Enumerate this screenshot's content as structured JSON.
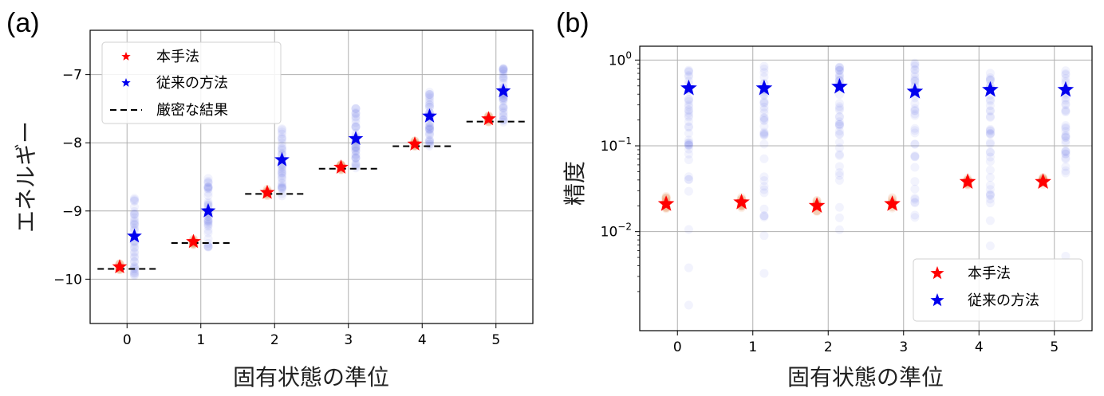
{
  "chart_data": [
    {
      "panel_label": "(a)",
      "type": "scatter",
      "xlabel": "固有状態の準位",
      "ylabel": "エネルギー",
      "xlim": [
        -0.5,
        5.5
      ],
      "ylim": [
        -10.65,
        -6.35
      ],
      "x_ticks": [
        "0",
        "1",
        "2",
        "3",
        "4",
        "5"
      ],
      "y_ticks": [
        {
          "v": -10,
          "label": "−10"
        },
        {
          "v": -9,
          "label": "−9"
        },
        {
          "v": -8,
          "label": "−8"
        },
        {
          "v": -7,
          "label": "−7"
        }
      ],
      "grid": true,
      "legend": {
        "placement": "top-left",
        "entries": [
          {
            "label": "本手法",
            "color": "#ff0000",
            "marker": "star"
          },
          {
            "label": "従来の方法",
            "color": "#0000ee",
            "marker": "star"
          },
          {
            "label": "厳密な結果",
            "color": "#000000",
            "marker": "dashed-line"
          }
        ]
      },
      "series": [
        {
          "name": "本手法",
          "color": "#ff0000",
          "x": [
            -0.1,
            0.9,
            1.9,
            2.9,
            3.9,
            4.9
          ],
          "y": [
            -9.82,
            -9.45,
            -8.73,
            -8.36,
            -8.02,
            -7.65
          ]
        },
        {
          "name": "従来の方法",
          "color": "#0000ee",
          "x": [
            0.1,
            1.1,
            2.1,
            3.1,
            4.1,
            5.1
          ],
          "y": [
            -9.37,
            -9.0,
            -8.25,
            -7.94,
            -7.61,
            -7.24
          ]
        },
        {
          "name": "厳密な結果",
          "color": "#000000",
          "x": [
            0,
            1,
            2,
            3,
            4,
            5
          ],
          "y": [
            -9.85,
            -9.47,
            -8.75,
            -8.38,
            -8.05,
            -7.69
          ]
        }
      ],
      "spread_ranges": {
        "本手法": [
          [
            -9.87,
            -9.77
          ],
          [
            -9.5,
            -9.4
          ],
          [
            -8.78,
            -8.68
          ],
          [
            -8.41,
            -8.31
          ],
          [
            -8.07,
            -7.97
          ],
          [
            -7.7,
            -7.6
          ]
        ],
        "従来の方法": [
          [
            -9.95,
            -8.8
          ],
          [
            -9.55,
            -8.5
          ],
          [
            -8.78,
            -7.78
          ],
          [
            -8.38,
            -7.48
          ],
          [
            -8.05,
            -7.18
          ],
          [
            -7.7,
            -6.88
          ]
        ]
      }
    },
    {
      "panel_label": "(b)",
      "type": "scatter",
      "xlabel": "固有状態の準位",
      "ylabel": "精度",
      "yscale": "log",
      "xlim": [
        -0.5,
        5.5
      ],
      "ylim": [
        0.0007,
        1.45
      ],
      "x_ticks": [
        "0",
        "1",
        "2",
        "3",
        "4",
        "5"
      ],
      "y_ticks": [
        {
          "v": 1,
          "base": "10",
          "exp": "0"
        },
        {
          "v": 0.1,
          "base": "10",
          "exp": "−1"
        },
        {
          "v": 0.01,
          "base": "10",
          "exp": "−2"
        }
      ],
      "grid": true,
      "legend": {
        "placement": "bottom-right",
        "entries": [
          {
            "label": "本手法",
            "color": "#ff0000",
            "marker": "star"
          },
          {
            "label": "従来の方法",
            "color": "#0000ee",
            "marker": "star"
          }
        ]
      },
      "series": [
        {
          "name": "本手法",
          "color": "#ff0000",
          "x": [
            -0.15,
            0.85,
            1.85,
            2.85,
            3.85,
            4.85
          ],
          "y": [
            0.021,
            0.022,
            0.02,
            0.021,
            0.038,
            0.038
          ]
        },
        {
          "name": "従来の方法",
          "color": "#0000ee",
          "x": [
            0.15,
            1.15,
            2.15,
            3.15,
            4.15,
            5.15
          ],
          "y": [
            0.47,
            0.47,
            0.49,
            0.43,
            0.45,
            0.45
          ]
        }
      ],
      "spread_ranges": {
        "本手法": [
          [
            0.018,
            0.026
          ],
          [
            0.018,
            0.026
          ],
          [
            0.017,
            0.024
          ],
          [
            0.018,
            0.025
          ],
          [
            0.034,
            0.043
          ],
          [
            0.034,
            0.043
          ]
        ],
        "従来の方法": [
          [
            0.0013,
            1.0
          ],
          [
            0.0012,
            1.0
          ],
          [
            0.0045,
            1.0
          ],
          [
            0.0011,
            0.95
          ],
          [
            0.0025,
            0.93
          ],
          [
            0.0035,
            0.85
          ]
        ]
      }
    }
  ]
}
